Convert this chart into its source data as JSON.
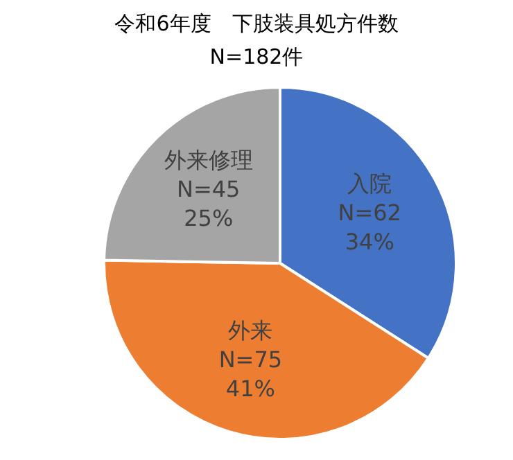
{
  "chart_data": {
    "type": "pie",
    "title": "令和6年度　下肢装具処方件数",
    "subtitle": "N=182件",
    "categories": [
      "入院",
      "外来",
      "外来修理"
    ],
    "values": [
      62,
      75,
      45
    ],
    "colors": [
      "#4472c4",
      "#ed7d31",
      "#a5a5a5"
    ],
    "value_labels": [
      "N=62",
      "N=75",
      "N=45"
    ],
    "annotations": [
      {
        "text": "34%",
        "x": "入院"
      },
      {
        "text": "41%",
        "x": "外来"
      },
      {
        "text": "25%",
        "x": "外来修理"
      }
    ],
    "legend": false
  }
}
